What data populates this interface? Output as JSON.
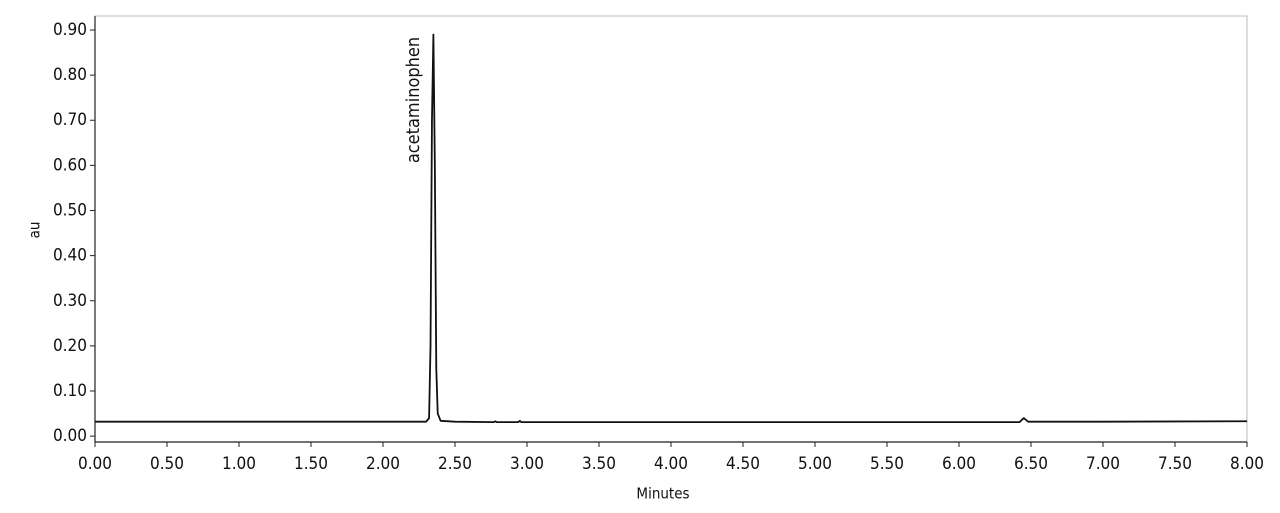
{
  "chart_data": {
    "type": "line",
    "x_label": "Minutes",
    "y_label": "au",
    "annotation": "acetaminophen",
    "x": [
      0,
      0.5,
      1,
      1.5,
      2,
      2.3,
      2.32,
      2.33,
      2.34,
      2.35,
      2.36,
      2.37,
      2.38,
      2.4,
      2.5,
      2.77,
      2.78,
      2.79,
      2.94,
      2.95,
      2.96,
      3.5,
      4,
      5,
      6,
      6.42,
      6.45,
      6.48,
      7,
      8
    ],
    "series": [
      {
        "color": "#111111",
        "values": [
          0.032,
          0.032,
          0.032,
          0.032,
          0.032,
          0.032,
          0.04,
          0.2,
          0.7,
          0.89,
          0.6,
          0.15,
          0.05,
          0.034,
          0.032,
          0.031,
          0.033,
          0.031,
          0.031,
          0.034,
          0.031,
          0.031,
          0.031,
          0.031,
          0.031,
          0.031,
          0.04,
          0.032,
          0.032,
          0.033
        ]
      }
    ],
    "xlim": [
      0,
      8
    ],
    "ylim": [
      -0.013,
      0.931
    ],
    "xticks": [
      {
        "value": 0,
        "label": "0.00"
      },
      {
        "value": 0.5,
        "label": "0.50"
      },
      {
        "value": 1,
        "label": "1.00"
      },
      {
        "value": 1.5,
        "label": "1.50"
      },
      {
        "value": 2,
        "label": "2.00"
      },
      {
        "value": 2.5,
        "label": "2.50"
      },
      {
        "value": 3,
        "label": "3.00"
      },
      {
        "value": 3.5,
        "label": "3.50"
      },
      {
        "value": 4,
        "label": "4.00"
      },
      {
        "value": 4.5,
        "label": "4.50"
      },
      {
        "value": 5,
        "label": "5.00"
      },
      {
        "value": 5.5,
        "label": "5.50"
      },
      {
        "value": 6,
        "label": "6.00"
      },
      {
        "value": 6.5,
        "label": "6.50"
      },
      {
        "value": 7,
        "label": "7.00"
      },
      {
        "value": 7.5,
        "label": "7.50"
      },
      {
        "value": 8,
        "label": "8.00"
      }
    ],
    "yticks": [
      {
        "value": 0,
        "label": "0.00"
      },
      {
        "value": 0.1,
        "label": "0.10"
      },
      {
        "value": 0.2,
        "label": "0.20"
      },
      {
        "value": 0.3,
        "label": "0.30"
      },
      {
        "value": 0.4,
        "label": "0.40"
      },
      {
        "value": 0.5,
        "label": "0.50"
      },
      {
        "value": 0.6,
        "label": "0.60"
      },
      {
        "value": 0.7,
        "label": "0.70"
      },
      {
        "value": 0.8,
        "label": "0.80"
      },
      {
        "value": 0.9,
        "label": "0.90"
      }
    ],
    "grid": false
  }
}
